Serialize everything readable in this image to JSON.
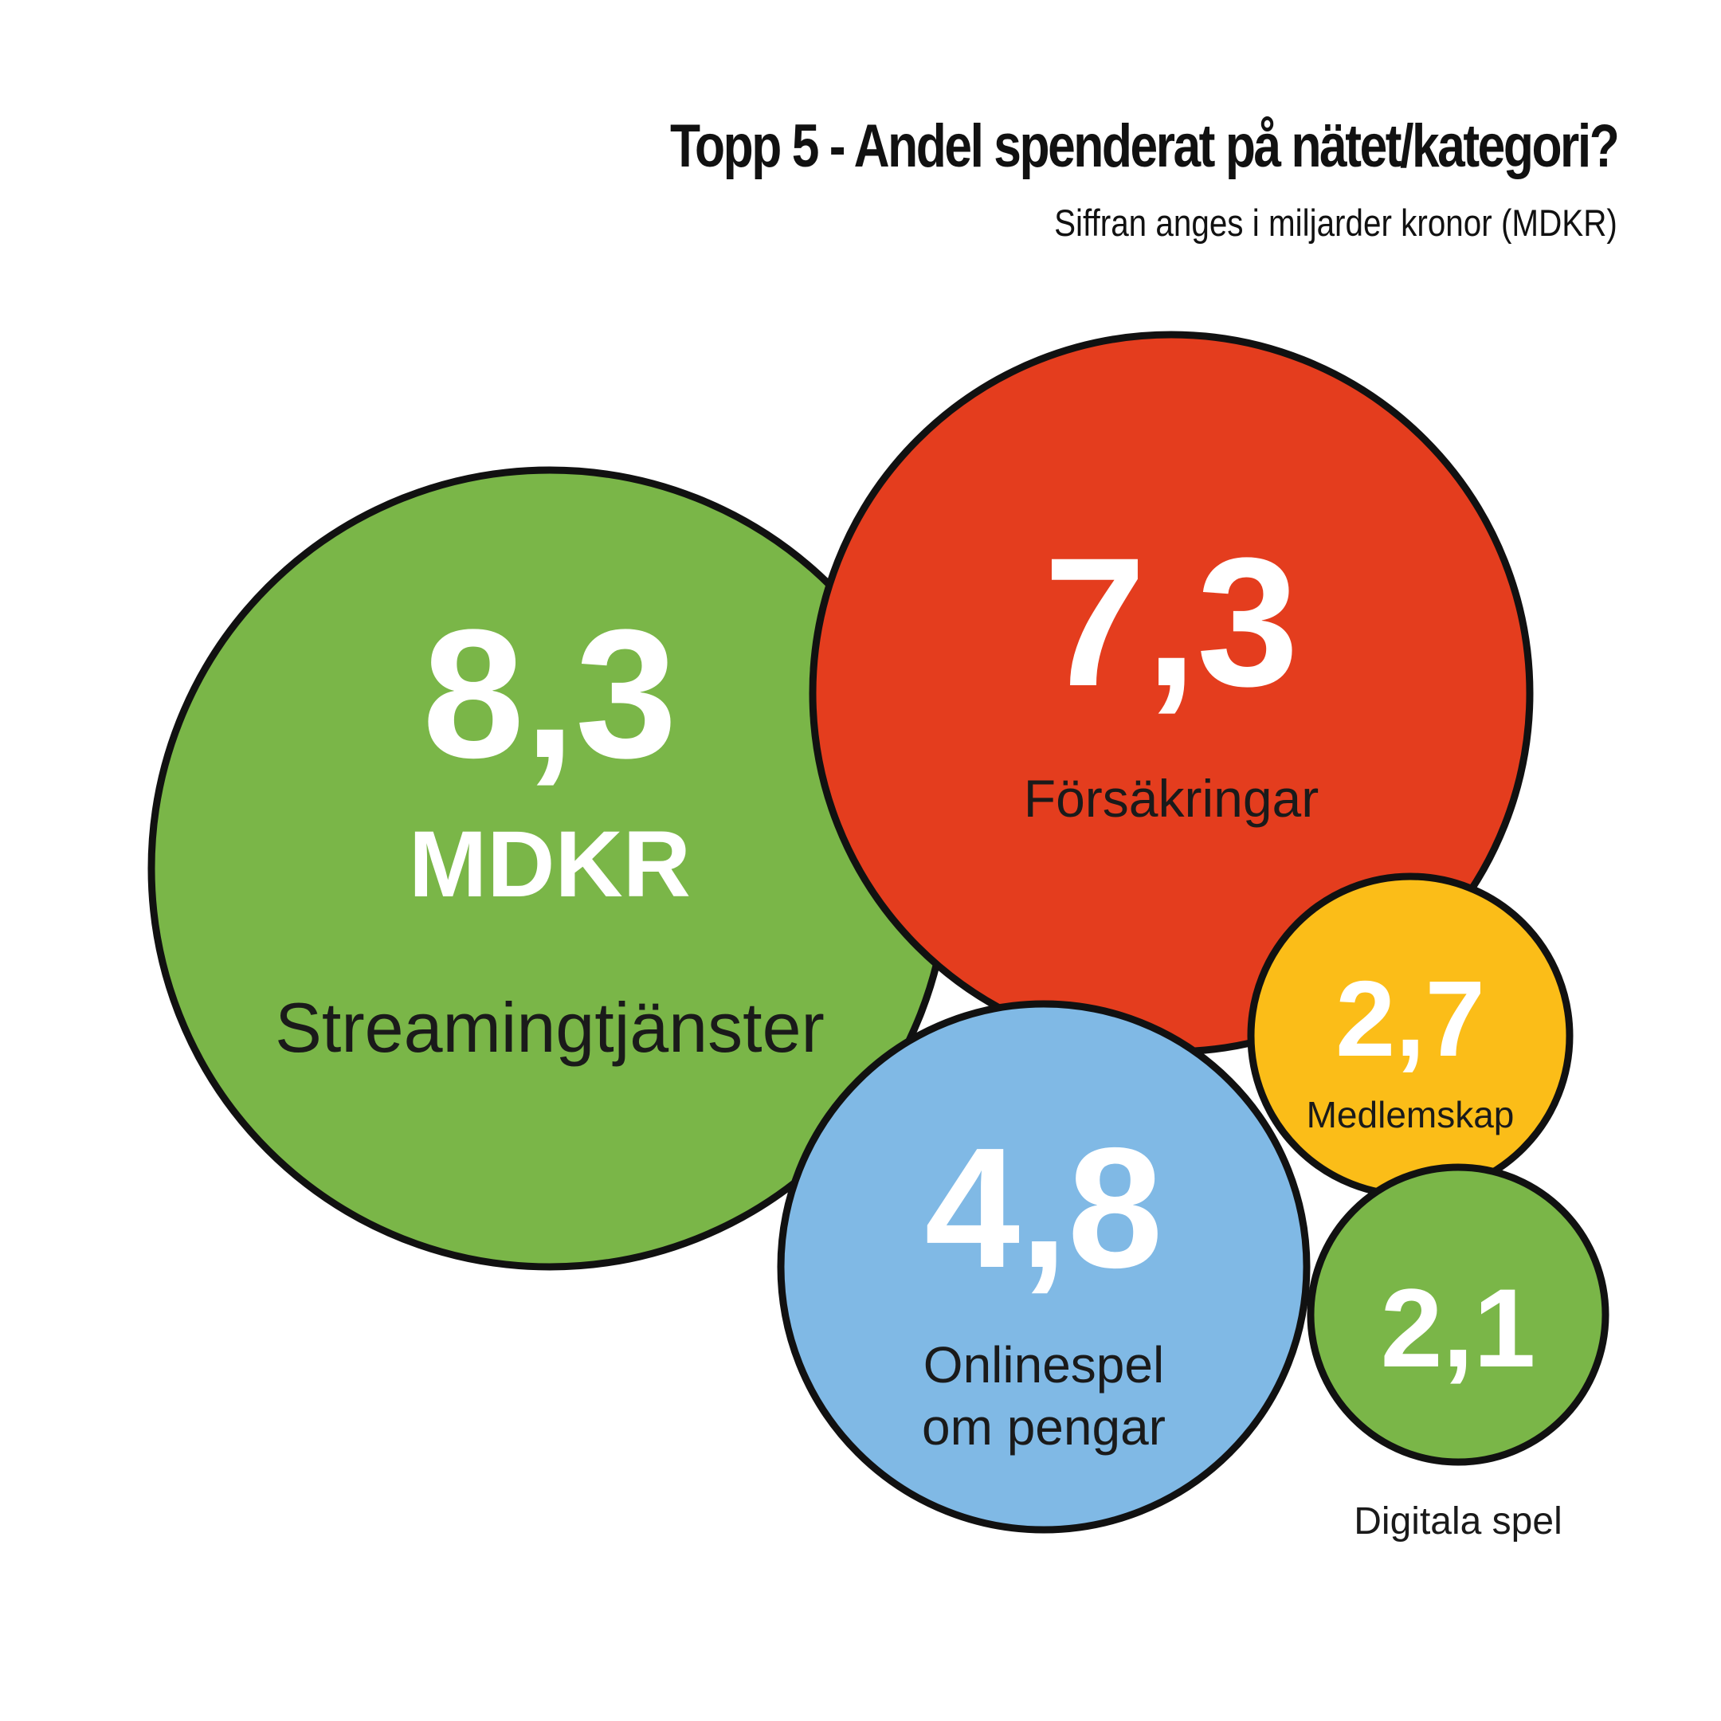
{
  "title": "Topp 5 - Andel spenderat på nätet/kategori?",
  "subtitle": "Siffran anges i miljarder kronor (MDKR)",
  "unit_label": "MDKR",
  "chart_data": {
    "type": "bubble",
    "title": "Topp 5 - Andel spenderat på nätet/kategori?",
    "subtitle": "Siffran anges i miljarder kronor (MDKR)",
    "unit": "MDKR",
    "categories": [
      "Streamingtjänster",
      "Försäkringar",
      "Onlinespel om pengar",
      "Medlemskap",
      "Digitala spel"
    ],
    "values": [
      8.3,
      7.3,
      4.8,
      2.7,
      2.1
    ],
    "value_labels": [
      "8,3",
      "7,3",
      "4,8",
      "2,7",
      "2,1"
    ],
    "label_lines": [
      [
        "Streamingtjänster"
      ],
      [
        "Försäkringar"
      ],
      [
        "Onlinespel",
        "om pengar"
      ],
      [
        "Medlemskap"
      ],
      [
        "Digitala spel"
      ]
    ],
    "colors": [
      "#7ab648",
      "#e43d1e",
      "#80b9e5",
      "#fbbd18",
      "#7ab648"
    ]
  }
}
